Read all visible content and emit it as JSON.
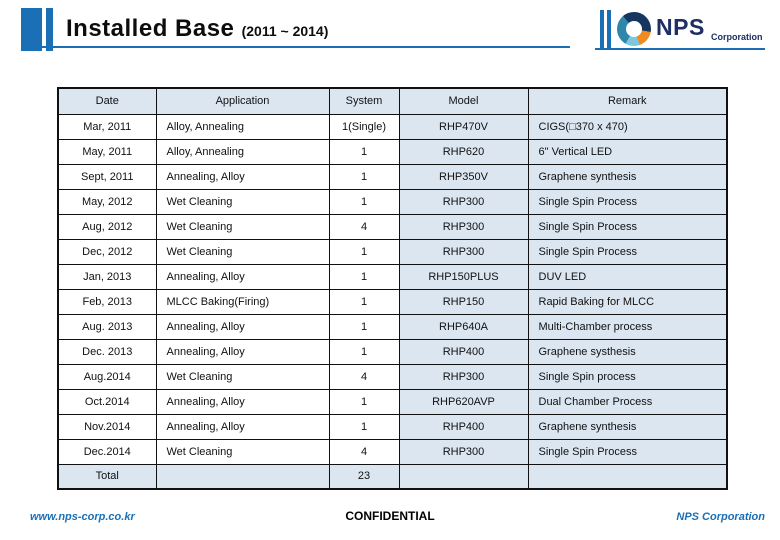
{
  "header": {
    "title": "Installed Base",
    "title_suffix": "(2011 ~ 2014)",
    "logo": {
      "brand": "NPS",
      "brand_suffix": "Corporation"
    }
  },
  "table": {
    "columns": [
      "Date",
      "Application",
      "System",
      "Model",
      "Remark"
    ],
    "rows": [
      {
        "date": "Mar, 2011",
        "application": "Alloy, Annealing",
        "system": "1(Single)",
        "model": "RHP470V",
        "remark": "CIGS(□370 x 470)"
      },
      {
        "date": "May, 2011",
        "application": "Alloy, Annealing",
        "system": "1",
        "model": "RHP620",
        "remark": "6\" Vertical LED"
      },
      {
        "date": "Sept, 2011",
        "application": "Annealing, Alloy",
        "system": "1",
        "model": "RHP350V",
        "remark": "Graphene synthesis"
      },
      {
        "date": "May, 2012",
        "application": "Wet Cleaning",
        "system": "1",
        "model": "RHP300",
        "remark": "Single Spin Process"
      },
      {
        "date": "Aug, 2012",
        "application": "Wet Cleaning",
        "system": "4",
        "model": "RHP300",
        "remark": "Single Spin Process"
      },
      {
        "date": "Dec, 2012",
        "application": "Wet Cleaning",
        "system": "1",
        "model": "RHP300",
        "remark": "Single Spin Process"
      },
      {
        "date": "Jan, 2013",
        "application": "Annealing, Alloy",
        "system": "1",
        "model": "RHP150PLUS",
        "remark": "DUV LED"
      },
      {
        "date": "Feb, 2013",
        "application": "MLCC Baking(Firing)",
        "system": "1",
        "model": "RHP150",
        "remark": "Rapid Baking for MLCC"
      },
      {
        "date": "Aug. 2013",
        "application": "Annealing, Alloy",
        "system": "1",
        "model": "RHP640A",
        "remark": "Multi-Chamber process"
      },
      {
        "date": "Dec. 2013",
        "application": "Annealing, Alloy",
        "system": "1",
        "model": "RHP400",
        "remark": "Graphene systhesis"
      },
      {
        "date": "Aug.2014",
        "application": "Wet Cleaning",
        "system": "4",
        "model": "RHP300",
        "remark": "Single Spin process"
      },
      {
        "date": "Oct.2014",
        "application": "Annealing, Alloy",
        "system": "1",
        "model": "RHP620AVP",
        "remark": "Dual Chamber Process"
      },
      {
        "date": "Nov.2014",
        "application": "Annealing, Alloy",
        "system": "1",
        "model": "RHP400",
        "remark": "Graphene synthesis"
      },
      {
        "date": "Dec.2014",
        "application": "Wet Cleaning",
        "system": "4",
        "model": "RHP300",
        "remark": "Single Spin Process"
      }
    ],
    "total": {
      "label": "Total",
      "system_total": "23"
    }
  },
  "footer": {
    "website": "www.nps-corp.co.kr",
    "confidential": "CONFIDENTIAL",
    "company": "NPS Corporation"
  },
  "colors": {
    "accent_blue": "#1b6fb5",
    "navy": "#1e2f63",
    "orange": "#ef8b1f",
    "table_fill": "#dce6f1",
    "border": "#111111"
  }
}
